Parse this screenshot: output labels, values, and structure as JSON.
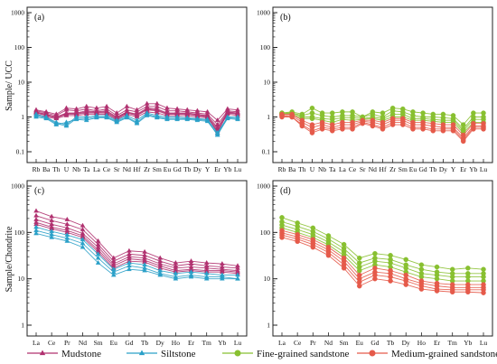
{
  "colors": {
    "mudstone": "#b0306f",
    "siltstone": "#2aa0c8",
    "fine": "#88c030",
    "medium": "#e55a4a"
  },
  "y_axis_labels": {
    "top": "Sample/ UCC",
    "bottom": "Sample/Chondrite"
  },
  "legend": [
    {
      "label": "Mudstone",
      "marker": "triangle",
      "color_key": "mudstone"
    },
    {
      "label": "Siltstone",
      "marker": "triangle",
      "color_key": "siltstone"
    },
    {
      "label": "Fine-grained sandstone",
      "marker": "circle",
      "color_key": "fine"
    },
    {
      "label": "Medium-grained sandstone",
      "marker": "circle",
      "color_key": "medium"
    }
  ],
  "chart_data": [
    {
      "type": "line",
      "panel_label": "(a)",
      "yscale": "log",
      "ylim": [
        0.1,
        1000
      ],
      "yticks": [
        "0.1",
        "1",
        "10",
        "100",
        "1000"
      ],
      "categories": [
        "Rb",
        "Ba",
        "Th",
        "U",
        "Nb",
        "Ta",
        "La",
        "Ce",
        "Sr",
        "Nd",
        "Hf",
        "Zr",
        "Sm",
        "Eu",
        "Gd",
        "Tb",
        "Dy",
        "Y",
        "Er",
        "Yb",
        "Lu"
      ],
      "series": [
        {
          "group": "mudstone",
          "values": [
            1.6,
            1.4,
            1.2,
            1.8,
            1.7,
            2.0,
            1.8,
            2.0,
            1.3,
            2.0,
            1.6,
            2.4,
            2.4,
            1.8,
            1.7,
            1.6,
            1.5,
            1.4,
            0.8,
            1.7,
            1.6
          ]
        },
        {
          "group": "mudstone",
          "values": [
            1.5,
            1.3,
            1.1,
            1.6,
            1.5,
            1.7,
            1.5,
            1.7,
            1.1,
            1.6,
            1.4,
            2.0,
            2.0,
            1.5,
            1.5,
            1.4,
            1.3,
            1.2,
            0.6,
            1.5,
            1.4
          ]
        },
        {
          "group": "mudstone",
          "values": [
            1.4,
            1.2,
            1.0,
            1.3,
            1.3,
            1.5,
            1.4,
            1.5,
            1.0,
            1.4,
            1.2,
            1.8,
            1.7,
            1.3,
            1.3,
            1.3,
            1.2,
            1.1,
            0.5,
            1.4,
            1.3
          ]
        },
        {
          "group": "mudstone",
          "values": [
            1.3,
            1.1,
            0.95,
            1.2,
            1.2,
            1.3,
            1.3,
            1.3,
            0.9,
            1.3,
            1.1,
            1.6,
            1.5,
            1.2,
            1.2,
            1.2,
            1.1,
            1.0,
            0.45,
            1.3,
            1.2
          ]
        },
        {
          "group": "mudstone",
          "values": [
            1.2,
            1.0,
            0.9,
            1.1,
            1.1,
            1.2,
            1.2,
            1.2,
            0.85,
            1.2,
            1.0,
            1.4,
            1.3,
            1.1,
            1.1,
            1.1,
            1.0,
            0.95,
            0.4,
            1.2,
            1.1
          ]
        },
        {
          "group": "mudstone",
          "values": [
            1.35,
            1.15,
            1.0,
            1.25,
            1.25,
            1.4,
            1.35,
            1.4,
            0.95,
            1.35,
            1.15,
            1.7,
            1.6,
            1.25,
            1.25,
            1.25,
            1.15,
            1.05,
            0.35,
            1.35,
            1.25
          ]
        },
        {
          "group": "siltstone",
          "values": [
            1.2,
            1.0,
            0.7,
            0.6,
            1.0,
            1.0,
            1.1,
            1.1,
            0.8,
            1.1,
            0.8,
            1.3,
            1.1,
            1.0,
            1.0,
            0.95,
            0.9,
            0.85,
            0.35,
            1.0,
            1.0
          ]
        },
        {
          "group": "siltstone",
          "values": [
            1.1,
            0.95,
            0.65,
            0.55,
            0.9,
            0.9,
            1.0,
            1.0,
            0.75,
            1.0,
            0.7,
            1.2,
            1.0,
            0.9,
            0.9,
            0.9,
            0.85,
            0.8,
            0.3,
            0.95,
            0.9
          ]
        },
        {
          "group": "siltstone",
          "values": [
            1.0,
            0.9,
            0.6,
            0.7,
            0.85,
            0.8,
            0.95,
            0.95,
            0.7,
            0.95,
            0.65,
            1.1,
            0.95,
            0.85,
            0.85,
            0.85,
            0.8,
            0.75,
            0.32,
            0.9,
            0.85
          ]
        }
      ]
    },
    {
      "type": "line",
      "panel_label": "(b)",
      "yscale": "log",
      "ylim": [
        0.1,
        1000
      ],
      "yticks": [
        "0.1",
        "1",
        "10",
        "100",
        "1000"
      ],
      "categories": [
        "Rb",
        "Ba",
        "Th",
        "U",
        "Nb",
        "Ta",
        "La",
        "Ce",
        "Sr",
        "Nd",
        "Hf",
        "Zr",
        "Sm",
        "Eu",
        "Gd",
        "Tb",
        "Dy",
        "Y",
        "Er",
        "Yb",
        "Lu"
      ],
      "series": [
        {
          "group": "fine",
          "values": [
            1.3,
            1.4,
            1.2,
            1.8,
            1.3,
            1.3,
            1.4,
            1.4,
            1.0,
            1.4,
            1.3,
            1.8,
            1.7,
            1.4,
            1.3,
            1.2,
            1.2,
            1.1,
            0.6,
            1.3,
            1.3
          ]
        },
        {
          "group": "fine",
          "values": [
            1.3,
            1.3,
            1.1,
            1.3,
            1.1,
            1.0,
            1.1,
            1.1,
            1.0,
            1.2,
            1.0,
            1.5,
            1.4,
            1.1,
            1.0,
            1.0,
            0.95,
            0.9,
            0.45,
            1.0,
            1.0
          ]
        },
        {
          "group": "fine",
          "values": [
            1.2,
            1.3,
            1.0,
            1.0,
            0.9,
            0.85,
            0.95,
            0.95,
            0.9,
            1.0,
            0.9,
            1.2,
            1.2,
            0.9,
            0.9,
            0.85,
            0.8,
            0.8,
            0.4,
            0.85,
            0.85
          ]
        },
        {
          "group": "fine",
          "values": [
            1.2,
            1.2,
            0.9,
            0.9,
            0.8,
            0.7,
            0.85,
            0.8,
            0.85,
            0.9,
            0.8,
            1.0,
            1.0,
            0.8,
            0.8,
            0.75,
            0.7,
            0.7,
            0.35,
            0.7,
            0.7
          ]
        },
        {
          "group": "medium",
          "values": [
            1.2,
            1.2,
            0.8,
            0.6,
            0.7,
            0.6,
            0.7,
            0.7,
            0.8,
            0.8,
            0.7,
            0.9,
            0.9,
            0.7,
            0.7,
            0.65,
            0.6,
            0.6,
            0.3,
            0.65,
            0.65
          ]
        },
        {
          "group": "medium",
          "values": [
            1.1,
            1.1,
            0.7,
            0.5,
            0.6,
            0.5,
            0.6,
            0.6,
            0.75,
            0.7,
            0.6,
            0.8,
            0.8,
            0.6,
            0.6,
            0.55,
            0.5,
            0.5,
            0.25,
            0.55,
            0.55
          ]
        },
        {
          "group": "medium",
          "values": [
            1.1,
            1.0,
            0.6,
            0.4,
            0.5,
            0.45,
            0.5,
            0.5,
            0.7,
            0.6,
            0.5,
            0.7,
            0.7,
            0.5,
            0.5,
            0.45,
            0.45,
            0.45,
            0.22,
            0.5,
            0.5
          ]
        },
        {
          "group": "medium",
          "values": [
            1.0,
            1.0,
            0.55,
            0.35,
            0.45,
            0.4,
            0.45,
            0.45,
            0.65,
            0.55,
            0.45,
            0.6,
            0.6,
            0.45,
            0.45,
            0.4,
            0.4,
            0.4,
            0.2,
            0.45,
            0.45
          ]
        }
      ]
    },
    {
      "type": "line",
      "panel_label": "(c)",
      "yscale": "log",
      "ylim": [
        1,
        1000
      ],
      "yticks": [
        "1",
        "10",
        "100",
        "1000"
      ],
      "categories": [
        "La",
        "Ce",
        "Pr",
        "Nd",
        "Sm",
        "Eu",
        "Gd",
        "Tb",
        "Dy",
        "Ho",
        "Er",
        "Tm",
        "Yb",
        "Lu"
      ],
      "series": [
        {
          "group": "mudstone",
          "values": [
            290,
            220,
            190,
            140,
            65,
            28,
            40,
            38,
            28,
            22,
            24,
            22,
            21,
            19
          ]
        },
        {
          "group": "mudstone",
          "values": [
            230,
            180,
            150,
            115,
            55,
            24,
            34,
            32,
            24,
            19,
            21,
            19,
            18,
            17
          ]
        },
        {
          "group": "mudstone",
          "values": [
            190,
            150,
            125,
            95,
            48,
            21,
            30,
            28,
            21,
            17,
            18,
            17,
            16,
            15
          ]
        },
        {
          "group": "mudstone",
          "values": [
            165,
            130,
            110,
            85,
            42,
            19,
            27,
            25,
            19,
            15,
            16,
            15,
            15,
            14
          ]
        },
        {
          "group": "mudstone",
          "values": [
            150,
            120,
            100,
            78,
            38,
            17,
            24,
            23,
            17,
            14,
            15,
            14,
            14,
            13
          ]
        },
        {
          "group": "siltstone",
          "values": [
            130,
            105,
            88,
            70,
            34,
            16,
            22,
            20,
            15,
            13,
            14,
            13,
            12,
            12
          ]
        },
        {
          "group": "siltstone",
          "values": [
            110,
            90,
            75,
            58,
            28,
            14,
            19,
            17,
            13,
            11,
            12,
            11,
            11,
            10
          ]
        },
        {
          "group": "siltstone",
          "values": [
            95,
            78,
            65,
            48,
            22,
            12,
            16,
            15,
            12,
            10,
            11,
            10,
            10,
            10
          ]
        }
      ]
    },
    {
      "type": "line",
      "panel_label": "(d)",
      "yscale": "log",
      "ylim": [
        1,
        1000
      ],
      "yticks": [
        "1",
        "10",
        "100",
        "1000"
      ],
      "categories": [
        "La",
        "Ce",
        "Pr",
        "Nd",
        "Sm",
        "Eu",
        "Gd",
        "Tb",
        "Dy",
        "Ho",
        "Er",
        "Tm",
        "Yb",
        "Lu"
      ],
      "series": [
        {
          "group": "fine",
          "values": [
            210,
            160,
            125,
            85,
            55,
            28,
            35,
            32,
            26,
            20,
            18,
            16,
            17,
            16
          ]
        },
        {
          "group": "fine",
          "values": [
            170,
            135,
            105,
            72,
            45,
            22,
            28,
            26,
            20,
            16,
            14,
            13,
            13,
            13
          ]
        },
        {
          "group": "fine",
          "values": [
            145,
            115,
            90,
            62,
            38,
            18,
            24,
            22,
            17,
            13,
            12,
            11,
            11,
            11
          ]
        },
        {
          "group": "fine",
          "values": [
            125,
            100,
            78,
            54,
            32,
            15,
            20,
            18,
            14,
            11,
            10,
            9,
            9,
            9
          ]
        },
        {
          "group": "medium",
          "values": [
            110,
            90,
            70,
            48,
            28,
            12,
            17,
            15,
            12,
            9,
            8,
            7.5,
            7.5,
            7.5
          ]
        },
        {
          "group": "medium",
          "values": [
            98,
            80,
            62,
            42,
            24,
            10,
            14,
            13,
            10,
            8,
            7,
            6.5,
            6.5,
            6.5
          ]
        },
        {
          "group": "medium",
          "values": [
            88,
            72,
            55,
            37,
            20,
            8.5,
            12,
            11,
            9,
            7,
            6,
            5.8,
            5.8,
            5.8
          ]
        },
        {
          "group": "medium",
          "values": [
            78,
            64,
            48,
            32,
            17,
            7,
            10,
            9,
            7.5,
            6,
            5.5,
            5.2,
            5.2,
            5
          ]
        }
      ]
    }
  ]
}
